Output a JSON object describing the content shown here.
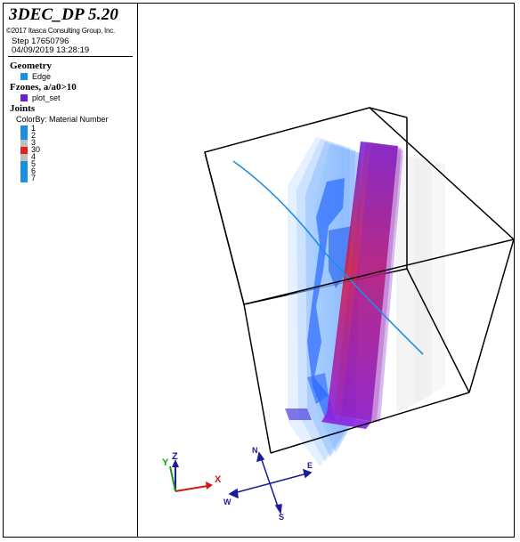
{
  "legend": {
    "title": "3DEC_DP 5.20",
    "copyright": "©2017 Itasca Consulting Group, Inc.",
    "step": "Step 17650796",
    "datetime": "04/09/2019 13:28:19",
    "geometry": {
      "heading": "Geometry",
      "items": [
        {
          "label": "Edge",
          "color": "#1a8fe3"
        }
      ]
    },
    "fzones": {
      "heading": "Fzones, a/a0>10",
      "items": [
        {
          "label": "plot_set",
          "color": "#6a1fd0"
        }
      ]
    },
    "joints": {
      "heading": "Joints",
      "colorby": "ColorBy: Material Number",
      "items": [
        {
          "label": "1",
          "color": "#1a8fe3"
        },
        {
          "label": "2",
          "color": "#1a8fe3"
        },
        {
          "label": "3",
          "color": "#c0c0c0"
        },
        {
          "label": "30",
          "color": "#e0201c"
        },
        {
          "label": "4",
          "color": "#c0c0c0"
        },
        {
          "label": "5",
          "color": "#1a8fe3"
        },
        {
          "label": "6",
          "color": "#1a8fe3"
        },
        {
          "label": "7",
          "color": "#1a8fe3"
        }
      ]
    }
  },
  "axes": {
    "x_label": "X",
    "y_label": "Y",
    "z_label": "Z",
    "x_color": "#d01818",
    "y_color": "#1a9a1a",
    "z_color": "#1a1aa0"
  },
  "compass": {
    "n_label": "N",
    "s_label": "S",
    "e_label": "E",
    "w_label": "W",
    "color": "#1a1a9c"
  }
}
